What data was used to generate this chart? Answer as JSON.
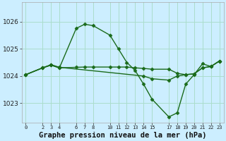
{
  "background_color": "#cceeff",
  "grid_color": "#aaddcc",
  "line_color": "#1a6b1a",
  "xlabel": "Graphe pression niveau de la mer (hPa)",
  "xlabel_fontsize": 7.5,
  "yticks": [
    1023,
    1024,
    1025,
    1026
  ],
  "ylim": [
    1022.3,
    1026.7
  ],
  "xlim": [
    -0.5,
    23.5
  ],
  "xtick_labels": [
    "0",
    "2",
    "3",
    "4",
    "6",
    "7",
    "8",
    "10",
    "11",
    "12",
    "13",
    "14",
    "15",
    "17",
    "18",
    "19",
    "20",
    "21",
    "22",
    "23"
  ],
  "xtick_positions": [
    0,
    2,
    3,
    4,
    6,
    7,
    8,
    10,
    11,
    12,
    13,
    14,
    15,
    17,
    18,
    19,
    20,
    21,
    22,
    23
  ],
  "series1_x": [
    0,
    2,
    3,
    4,
    6,
    7,
    8,
    10,
    11,
    12,
    13,
    14,
    15,
    17,
    18,
    19,
    20,
    21,
    22,
    23
  ],
  "series1_y": [
    1024.05,
    1024.3,
    1024.4,
    1024.3,
    1025.75,
    1025.9,
    1025.85,
    1025.5,
    1025.0,
    1024.5,
    1024.2,
    1023.7,
    1023.15,
    1022.5,
    1022.65,
    1023.7,
    1024.05,
    1024.45,
    1024.35,
    1024.55
  ],
  "series2_x": [
    0,
    2,
    3,
    4,
    6,
    7,
    8,
    10,
    11,
    12,
    13,
    14,
    15,
    17,
    18,
    19,
    20,
    21,
    22,
    23
  ],
  "series2_y": [
    1024.05,
    1024.3,
    1024.4,
    1024.3,
    1024.32,
    1024.33,
    1024.33,
    1024.33,
    1024.33,
    1024.33,
    1024.3,
    1024.28,
    1024.25,
    1024.25,
    1024.1,
    1024.05,
    1024.08,
    1024.3,
    1024.35,
    1024.55
  ],
  "series3_x": [
    0,
    2,
    3,
    4,
    14,
    15,
    17,
    18,
    19,
    20,
    21,
    22,
    23
  ],
  "series3_y": [
    1024.05,
    1024.3,
    1024.42,
    1024.32,
    1024.0,
    1023.9,
    1023.85,
    1024.0,
    1024.05,
    1024.08,
    1024.3,
    1024.35,
    1024.55
  ],
  "marker_size": 2.5,
  "linewidth": 1.0
}
